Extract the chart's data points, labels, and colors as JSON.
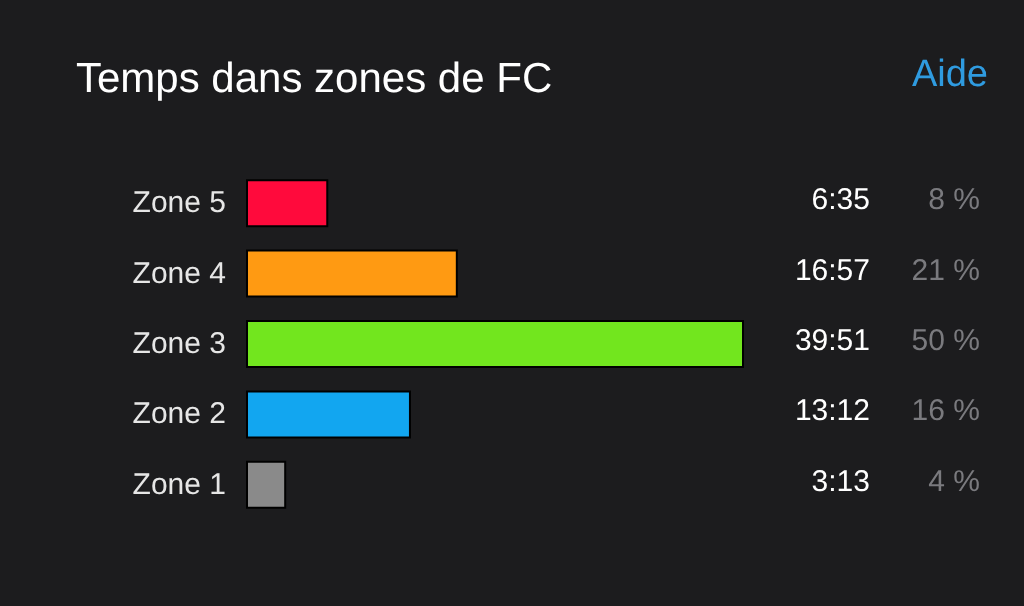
{
  "chart_data": {
    "type": "bar",
    "orientation": "horizontal",
    "title": "Temps dans zones de FC",
    "categories": [
      "Zone 5",
      "Zone 4",
      "Zone 3",
      "Zone 2",
      "Zone 1"
    ],
    "values": [
      395,
      1017,
      2391,
      792,
      193
    ],
    "colors": [
      "#ff0a3c",
      "#ff9a12",
      "#72e61e",
      "#12a6f0",
      "#8a8a8a"
    ],
    "value_labels": [
      "6:35",
      "16:57",
      "39:51",
      "13:12",
      "3:13"
    ],
    "annotations": [
      "Aide",
      "8 %",
      "21 %",
      "50 %",
      "16 %",
      "4 %"
    ]
  }
}
